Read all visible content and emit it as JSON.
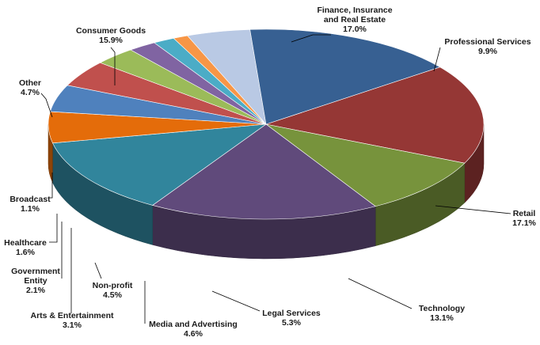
{
  "chart_data": {
    "type": "pie",
    "title": "",
    "style": "3d-exploded-none",
    "slices": [
      {
        "label": "Finance, Insurance and Real Estate",
        "value_label": "17.0%",
        "value": 17.0,
        "color": "#953735"
      },
      {
        "label": "Professional Services",
        "value_label": "9.9%",
        "value": 9.9,
        "color": "#77933c"
      },
      {
        "label": "Retail",
        "value_label": "17.1%",
        "value": 17.1,
        "color": "#604a7b"
      },
      {
        "label": "Technology",
        "value_label": "13.1%",
        "value": 13.1,
        "color": "#31859c"
      },
      {
        "label": "Legal Services",
        "value_label": "5.3%",
        "value": 5.3,
        "color": "#e46c0a"
      },
      {
        "label": "Media and Advertising",
        "value_label": "4.6%",
        "value": 4.6,
        "color": "#4f81bd"
      },
      {
        "label": "Non-profit",
        "value_label": "4.5%",
        "value": 4.5,
        "color": "#c0504d"
      },
      {
        "label": "Arts & Entertainment",
        "value_label": "3.1%",
        "value": 3.1,
        "color": "#9bbb59"
      },
      {
        "label": "Government Entity",
        "value_label": "2.1%",
        "value": 2.1,
        "color": "#8064a2"
      },
      {
        "label": "Healthcare",
        "value_label": "1.6%",
        "value": 1.6,
        "color": "#4bacc6"
      },
      {
        "label": "Broadcast",
        "value_label": "1.1%",
        "value": 1.1,
        "color": "#f79646"
      },
      {
        "label": "Other",
        "value_label": "4.7%",
        "value": 4.7,
        "color": "#b9c9e4"
      },
      {
        "label": "Consumer Goods",
        "value_label": "15.9%",
        "value": 15.9,
        "color": "#376092"
      }
    ]
  }
}
